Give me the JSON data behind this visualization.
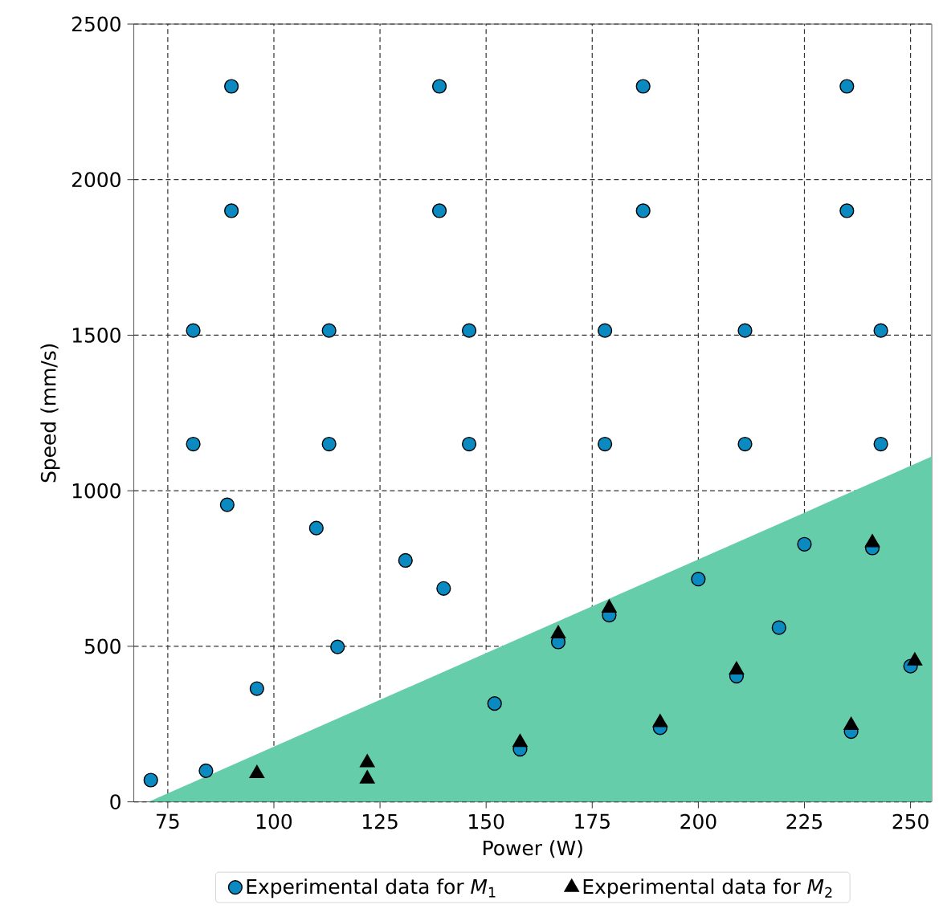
{
  "chart_data": {
    "type": "scatter",
    "xlabel": "Power (W)",
    "ylabel": "Speed (mm/s)",
    "xlim": [
      67,
      255
    ],
    "ylim": [
      0,
      2500
    ],
    "xticks": [
      75,
      100,
      125,
      150,
      175,
      200,
      225,
      250
    ],
    "yticks": [
      0,
      500,
      1000,
      1500,
      2000,
      2500
    ],
    "grid": true,
    "legend": "bottom",
    "series": [
      {
        "type": "area",
        "color": "#66cdaa",
        "x": [
          70.5,
          255
        ],
        "values": [
          0,
          1110
        ]
      },
      {
        "name": "Experimental data for *M*$_{1}$",
        "color": "#0a8ac0",
        "marker": "circle",
        "x": [
          90,
          139,
          187,
          235,
          90,
          139,
          187,
          235,
          81,
          113,
          146,
          178,
          211,
          243,
          81,
          113,
          146,
          178,
          211,
          243,
          89,
          110,
          131,
          140,
          115,
          96,
          84,
          71,
          152,
          158,
          167,
          179,
          200,
          225,
          219,
          209,
          191,
          236,
          241,
          250
        ],
        "values": [
          2300,
          2300,
          2300,
          2300,
          1900,
          1900,
          1900,
          1900,
          1515,
          1515,
          1515,
          1515,
          1515,
          1515,
          1150,
          1150,
          1150,
          1150,
          1150,
          1150,
          955,
          880,
          776,
          686,
          498,
          364,
          100,
          70,
          316,
          169,
          514,
          600,
          716,
          828,
          560,
          404,
          238,
          226,
          816,
          436
        ]
      },
      {
        "name": "Experimental data for *M*$_{2}$",
        "color": "#000000",
        "marker": "triangle",
        "x": [
          96,
          122,
          122,
          158,
          167,
          179,
          191,
          209,
          236,
          241,
          251
        ],
        "values": [
          91,
          126,
          74,
          191,
          540,
          623,
          255,
          424,
          246,
          833,
          453
        ]
      }
    ]
  }
}
